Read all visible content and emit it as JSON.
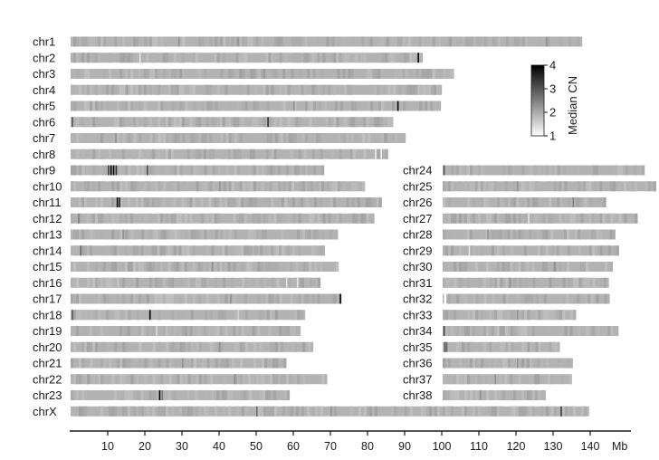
{
  "chart_data": {
    "type": "heatmap",
    "title": "",
    "xlabel": "",
    "x_unit": "Mb",
    "xlim": [
      0,
      145
    ],
    "x_ticks": [
      10,
      20,
      30,
      40,
      50,
      60,
      70,
      80,
      90,
      100,
      110,
      120,
      130,
      140
    ],
    "colorbar": {
      "label": "Median CN",
      "min": 1,
      "max": 4,
      "ticks": [
        1,
        2,
        3,
        4
      ],
      "color_low": "#ffffff",
      "color_high": "#000000"
    },
    "baseline_cn": 1.9,
    "chromosomes": [
      {
        "name": "chr1",
        "column": "left",
        "length": 137.8,
        "highlights": [
          [
            29,
            2.3
          ],
          [
            45,
            2.2
          ],
          [
            128,
            2.3
          ]
        ]
      },
      {
        "name": "chr2",
        "column": "left",
        "length": 94.9,
        "highlights": [
          [
            18.5,
            1.2
          ],
          [
            93.5,
            4
          ]
        ]
      },
      {
        "name": "chr3",
        "column": "left",
        "length": 103.3,
        "highlights": [
          [
            52,
            2.2
          ]
        ]
      },
      {
        "name": "chr4",
        "column": "left",
        "length": 100.0,
        "highlights": [
          [
            15,
            2.2
          ]
        ]
      },
      {
        "name": "chr5",
        "column": "left",
        "length": 99.8,
        "highlights": [
          [
            88,
            3.9
          ],
          [
            60,
            2.3
          ]
        ]
      },
      {
        "name": "chr6",
        "column": "left",
        "length": 86.9,
        "highlights": [
          [
            0.3,
            3.0
          ],
          [
            53,
            3.4
          ]
        ]
      },
      {
        "name": "chr7",
        "column": "left",
        "length": 90.3,
        "highlights": [
          [
            12,
            2.3
          ]
        ]
      },
      {
        "name": "chr8",
        "column": "left",
        "length": 85.5,
        "highlights": [
          [
            82,
            1.2
          ],
          [
            83.5,
            1.1
          ]
        ]
      },
      {
        "name": "chr9",
        "column": "left",
        "length": 68.3,
        "highlights": [
          [
            10,
            3.2
          ],
          [
            10.7,
            4
          ],
          [
            11.4,
            4
          ],
          [
            12.1,
            3.4
          ],
          [
            20.5,
            3.1
          ]
        ]
      },
      {
        "name": "chr10",
        "column": "left",
        "length": 79.3,
        "highlights": [
          [
            40,
            2.3
          ]
        ]
      },
      {
        "name": "chr11",
        "column": "left",
        "length": 83.8,
        "highlights": [
          [
            12.4,
            4
          ],
          [
            13,
            3.6
          ]
        ]
      },
      {
        "name": "chr12",
        "column": "left",
        "length": 81.8,
        "highlights": [
          [
            2,
            2.5
          ]
        ]
      },
      {
        "name": "chr13",
        "column": "left",
        "length": 72.0,
        "highlights": [
          [
            14,
            2.3
          ]
        ]
      },
      {
        "name": "chr14",
        "column": "left",
        "length": 68.5,
        "highlights": [
          [
            2.5,
            2.8
          ]
        ]
      },
      {
        "name": "chr15",
        "column": "left",
        "length": 72.2,
        "highlights": [
          [
            38,
            2.3
          ]
        ]
      },
      {
        "name": "chr16",
        "column": "left",
        "length": 67.3,
        "highlights": [
          [
            58,
            1.3
          ],
          [
            61,
            1.3
          ]
        ]
      },
      {
        "name": "chr17",
        "column": "left",
        "length": 73.0,
        "highlights": [
          [
            72.5,
            4
          ],
          [
            43,
            2.3
          ]
        ]
      },
      {
        "name": "chr18",
        "column": "left",
        "length": 63.2,
        "highlights": [
          [
            0.3,
            3.0
          ],
          [
            21.2,
            4
          ],
          [
            45,
            1.5
          ]
        ]
      },
      {
        "name": "chr19",
        "column": "left",
        "length": 62.0,
        "highlights": [
          [
            23,
            1.4
          ]
        ]
      },
      {
        "name": "chr20",
        "column": "left",
        "length": 65.4,
        "highlights": [
          [
            40,
            2.3
          ]
        ]
      },
      {
        "name": "chr21",
        "column": "left",
        "length": 58.1,
        "highlights": [
          [
            30,
            2.3
          ]
        ]
      },
      {
        "name": "chr22",
        "column": "left",
        "length": 69.1,
        "highlights": [
          [
            44,
            2.3
          ]
        ]
      },
      {
        "name": "chr23",
        "column": "left",
        "length": 59.0,
        "highlights": [
          [
            23.8,
            4
          ],
          [
            24.5,
            2.6
          ]
        ]
      },
      {
        "name": "chrX",
        "column": "left",
        "length": 139.7,
        "highlights": [
          [
            50,
            2.7
          ],
          [
            132,
            3.3
          ],
          [
            70,
            2.3
          ]
        ]
      },
      {
        "name": "chr24",
        "column": "right",
        "length": 54.4,
        "highlights": [
          [
            0.2,
            3.0
          ]
        ]
      },
      {
        "name": "chr25",
        "column": "right",
        "length": 57.5,
        "highlights": [
          [
            20,
            2.3
          ]
        ]
      },
      {
        "name": "chr26",
        "column": "right",
        "length": 44.0,
        "highlights": [
          [
            35,
            2.5
          ]
        ]
      },
      {
        "name": "chr27",
        "column": "right",
        "length": 52.5,
        "highlights": [
          [
            23,
            1.3
          ]
        ]
      },
      {
        "name": "chr28",
        "column": "right",
        "length": 46.5,
        "highlights": [
          [
            12,
            2.3
          ]
        ]
      },
      {
        "name": "chr29",
        "column": "right",
        "length": 47.5,
        "highlights": [
          [
            7,
            1.3
          ]
        ]
      },
      {
        "name": "chr30",
        "column": "right",
        "length": 45.8,
        "highlights": [
          [
            30,
            2.3
          ]
        ]
      },
      {
        "name": "chr31",
        "column": "right",
        "length": 44.8,
        "highlights": [
          [
            18,
            2.3
          ]
        ]
      },
      {
        "name": "chr32",
        "column": "right",
        "length": 45.0,
        "highlights": [
          [
            0.4,
            1.0
          ],
          [
            0.6,
            1.0
          ]
        ]
      },
      {
        "name": "chr33",
        "column": "right",
        "length": 35.9,
        "highlights": [
          [
            20,
            2.3
          ]
        ]
      },
      {
        "name": "chr34",
        "column": "right",
        "length": 47.4,
        "highlights": [
          [
            0.2,
            3.2
          ]
        ]
      },
      {
        "name": "chr35",
        "column": "right",
        "length": 31.6,
        "highlights": [
          [
            0.4,
            3.0
          ],
          [
            0.9,
            2.8
          ]
        ]
      },
      {
        "name": "chr36",
        "column": "right",
        "length": 35.1,
        "highlights": [
          [
            20,
            2.3
          ]
        ]
      },
      {
        "name": "chr37",
        "column": "right",
        "length": 34.8,
        "highlights": [
          [
            14,
            2.3
          ]
        ]
      },
      {
        "name": "chr38",
        "column": "right",
        "length": 27.8,
        "highlights": [
          [
            10,
            2.3
          ]
        ]
      }
    ]
  }
}
